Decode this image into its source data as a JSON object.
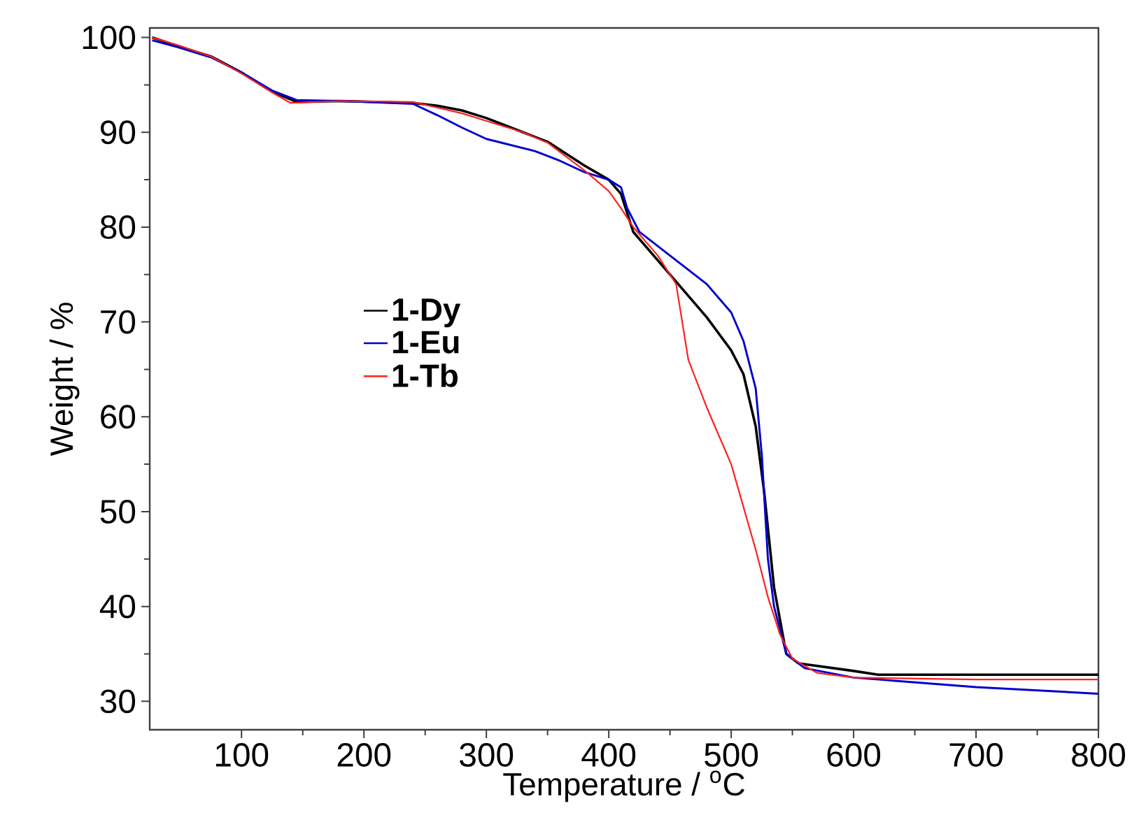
{
  "chart_data": {
    "type": "line",
    "xlabel": "Temperature / $^{o}$C",
    "ylabel": "Weight / %",
    "xlim": [
      25,
      800
    ],
    "ylim": [
      27,
      101
    ],
    "xticks": [
      100,
      200,
      300,
      400,
      500,
      600,
      700,
      800
    ],
    "yticks": [
      30,
      40,
      50,
      60,
      70,
      80,
      90,
      100
    ],
    "legend": "left",
    "grid": false,
    "line_style": "solid",
    "series": [
      {
        "name": "1-Dy",
        "color": "#000000",
        "x": [
          27,
          50,
          75,
          100,
          125,
          145,
          180,
          240,
          260,
          280,
          300,
          330,
          350,
          380,
          400,
          410,
          420,
          440,
          460,
          480,
          500,
          510,
          520,
          527,
          535,
          545,
          555,
          600,
          620,
          700,
          800
        ],
        "values": [
          100,
          99,
          98,
          96.3,
          94.3,
          93.2,
          93.3,
          93.1,
          92.8,
          92.3,
          91.5,
          90,
          89,
          86.5,
          85,
          83.5,
          79.5,
          76.5,
          73.5,
          70.5,
          67,
          64.5,
          59,
          52,
          42,
          35,
          34,
          33.2,
          32.8,
          32.8,
          32.8
        ]
      },
      {
        "name": "1-Eu",
        "color": "#0000cc",
        "x": [
          27,
          50,
          75,
          100,
          125,
          145,
          180,
          240,
          260,
          280,
          300,
          340,
          360,
          380,
          400,
          410,
          415,
          425,
          450,
          480,
          500,
          510,
          520,
          525,
          530,
          535,
          545,
          560,
          600,
          700,
          800
        ],
        "values": [
          99.7,
          98.9,
          97.9,
          96.3,
          94.4,
          93.4,
          93.3,
          93,
          91.8,
          90.5,
          89.3,
          88,
          87,
          85.8,
          85,
          84.2,
          82,
          79.5,
          77,
          74,
          71,
          68,
          63,
          56,
          45,
          40,
          35,
          33.5,
          32.5,
          31.5,
          30.8
        ]
      },
      {
        "name": "1-Tb",
        "color": "#ff2020",
        "x": [
          27,
          50,
          75,
          100,
          125,
          140,
          180,
          240,
          260,
          280,
          300,
          330,
          350,
          380,
          400,
          410,
          420,
          440,
          455,
          465,
          480,
          500,
          520,
          530,
          540,
          550,
          570,
          600,
          700,
          800
        ],
        "values": [
          100,
          99.1,
          98,
          96.2,
          94.2,
          93.1,
          93.3,
          93.2,
          92.6,
          92,
          91.2,
          90,
          88.9,
          86,
          83.8,
          82,
          80,
          77,
          74,
          66,
          61,
          55,
          46,
          41,
          37,
          34.5,
          33,
          32.5,
          32.3,
          32.3
        ]
      }
    ]
  }
}
